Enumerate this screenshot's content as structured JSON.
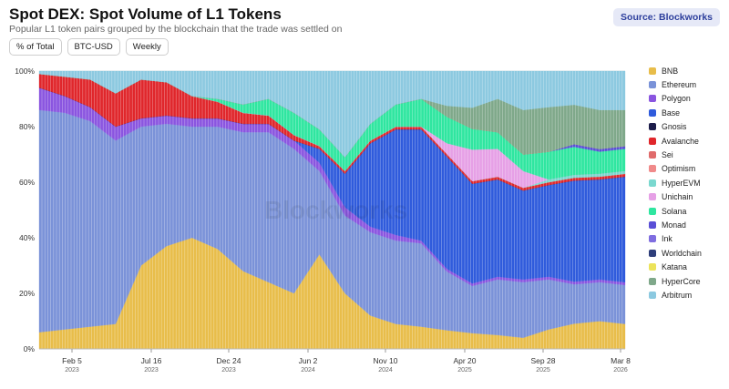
{
  "header": {
    "title": "Spot DEX: Spot Volume of L1 Tokens",
    "subtitle": "Popular L1 token pairs grouped by the blockchain that the trade was settled on",
    "source": "Source: Blockworks"
  },
  "controls": [
    "% of Total",
    "BTC-USD",
    "Weekly"
  ],
  "watermark": "Blockworks",
  "chart_data": {
    "type": "area",
    "stacked": true,
    "normalized": true,
    "x": [
      "2022-08-29",
      "2022-10-24",
      "2022-12-19",
      "2023-02-13",
      "2023-04-10",
      "2023-06-05",
      "2023-07-31",
      "2023-09-25",
      "2023-11-20",
      "2024-01-15",
      "2024-03-11",
      "2024-05-06",
      "2024-07-01",
      "2024-08-26",
      "2024-10-21",
      "2024-12-16",
      "2025-02-10",
      "2025-04-07",
      "2025-06-02",
      "2025-07-28",
      "2025-09-22",
      "2025-11-17",
      "2026-01-12",
      "2026-03-09"
    ],
    "x_ticks": [
      {
        "label": "Feb 5",
        "year": "2023"
      },
      {
        "label": "Jul 16",
        "year": "2023"
      },
      {
        "label": "Dec 24",
        "year": "2023"
      },
      {
        "label": "Jun 2",
        "year": "2024"
      },
      {
        "label": "Nov 10",
        "year": "2024"
      },
      {
        "label": "Apr 20",
        "year": "2025"
      },
      {
        "label": "Sep 28",
        "year": "2025"
      },
      {
        "label": "Mar 8",
        "year": "2026"
      }
    ],
    "y_ticks": [
      "0%",
      "20%",
      "40%",
      "60%",
      "80%",
      "100%"
    ],
    "ylim": [
      0,
      100
    ],
    "legend_position": "right",
    "series": [
      {
        "name": "BNB",
        "color": "#e8bd4a",
        "values": [
          6,
          7,
          8,
          9,
          30,
          37,
          40,
          36,
          28,
          24,
          20,
          34,
          20,
          12,
          9,
          8,
          7,
          6,
          5,
          4,
          7,
          9,
          10,
          9
        ]
      },
      {
        "name": "Ethereum",
        "color": "#7a92d8",
        "values": [
          80,
          78,
          74,
          66,
          50,
          44,
          40,
          44,
          50,
          54,
          52,
          30,
          28,
          30,
          30,
          30,
          22,
          18,
          20,
          20,
          18,
          14,
          14,
          14
        ]
      },
      {
        "name": "Polygon",
        "color": "#8a55e0",
        "values": [
          8,
          6,
          5,
          5,
          3,
          3,
          3,
          3,
          3,
          3,
          3,
          3,
          3,
          2,
          2,
          1,
          1,
          1,
          1,
          1,
          1,
          1,
          1,
          1
        ]
      },
      {
        "name": "Base",
        "color": "#2f5bdc",
        "values": [
          0,
          0,
          0,
          0,
          0,
          0,
          0,
          0,
          0,
          0,
          0,
          5,
          12,
          30,
          38,
          40,
          42,
          38,
          35,
          32,
          33,
          36,
          36,
          38
        ]
      },
      {
        "name": "Gnosis",
        "color": "#1c1c4a",
        "values": [
          0,
          0,
          0,
          0,
          0,
          0,
          0,
          0,
          0,
          0,
          0,
          0,
          0,
          0,
          0,
          0,
          0,
          0,
          0,
          0,
          0,
          0,
          0,
          0
        ]
      },
      {
        "name": "Avalanche",
        "color": "#e0262b",
        "values": [
          5,
          7,
          10,
          12,
          14,
          12,
          8,
          6,
          4,
          3,
          2,
          1,
          1,
          1,
          1,
          1,
          1,
          1,
          1,
          1,
          1,
          1,
          1,
          1
        ]
      },
      {
        "name": "Sei",
        "color": "#e06b6b",
        "values": [
          0,
          0,
          0,
          0,
          0,
          0,
          0,
          0,
          0,
          0,
          0,
          0,
          0,
          0,
          0,
          0,
          0,
          0,
          0,
          0,
          0,
          0,
          0,
          0
        ]
      },
      {
        "name": "Optimism",
        "color": "#f08a8a",
        "values": [
          0,
          0,
          0,
          0,
          0,
          0,
          0,
          0,
          0,
          0,
          0,
          0,
          0,
          0,
          0,
          0,
          0,
          0,
          0,
          0,
          0,
          0,
          0,
          0
        ]
      },
      {
        "name": "HyperEVM",
        "color": "#7ad8cf",
        "values": [
          0,
          0,
          0,
          0,
          0,
          0,
          0,
          0,
          0,
          0,
          0,
          0,
          0,
          0,
          0,
          0,
          0,
          0,
          0,
          0,
          1,
          1,
          1,
          1
        ]
      },
      {
        "name": "Unichain",
        "color": "#e6a0e6",
        "values": [
          0,
          0,
          0,
          0,
          0,
          0,
          0,
          0,
          0,
          0,
          0,
          0,
          0,
          0,
          0,
          0,
          4,
          12,
          10,
          6,
          0,
          0,
          0,
          0
        ]
      },
      {
        "name": "Solana",
        "color": "#2fe6a0",
        "values": [
          0,
          0,
          0,
          0,
          0,
          0,
          0,
          1,
          3,
          6,
          8,
          6,
          5,
          6,
          8,
          10,
          10,
          8,
          6,
          6,
          10,
          10,
          8,
          8
        ]
      },
      {
        "name": "Monad",
        "color": "#5a4fd6",
        "values": [
          0,
          0,
          0,
          0,
          0,
          0,
          0,
          0,
          0,
          0,
          0,
          0,
          0,
          0,
          0,
          0,
          0,
          0,
          0,
          0,
          0,
          1,
          1,
          1
        ]
      },
      {
        "name": "Ink",
        "color": "#7f6de0",
        "values": [
          0,
          0,
          0,
          0,
          0,
          0,
          0,
          0,
          0,
          0,
          0,
          0,
          0,
          0,
          0,
          0,
          0,
          0,
          0,
          0,
          0,
          0,
          0,
          0
        ]
      },
      {
        "name": "Worldchain",
        "color": "#2e3e7a",
        "values": [
          0,
          0,
          0,
          0,
          0,
          0,
          0,
          0,
          0,
          0,
          0,
          0,
          0,
          0,
          0,
          0,
          0,
          0,
          0,
          0,
          0,
          0,
          0,
          0
        ]
      },
      {
        "name": "Katana",
        "color": "#ece35a",
        "values": [
          0,
          0,
          0,
          0,
          0,
          0,
          0,
          0,
          0,
          0,
          0,
          0,
          0,
          0,
          0,
          0,
          0,
          0,
          0,
          0,
          0,
          0,
          0,
          0
        ]
      },
      {
        "name": "HyperCore",
        "color": "#7fa88a",
        "values": [
          0,
          0,
          0,
          0,
          0,
          0,
          0,
          0,
          0,
          0,
          0,
          0,
          0,
          0,
          0,
          0,
          4,
          8,
          12,
          16,
          16,
          14,
          14,
          13
        ]
      },
      {
        "name": "Arbitrum",
        "color": "#8cc9e0",
        "values": [
          1,
          2,
          3,
          8,
          3,
          4,
          9,
          10,
          12,
          10,
          15,
          21,
          31,
          19,
          12,
          10,
          13,
          14,
          10,
          14,
          13,
          12,
          14,
          14
        ]
      }
    ]
  }
}
